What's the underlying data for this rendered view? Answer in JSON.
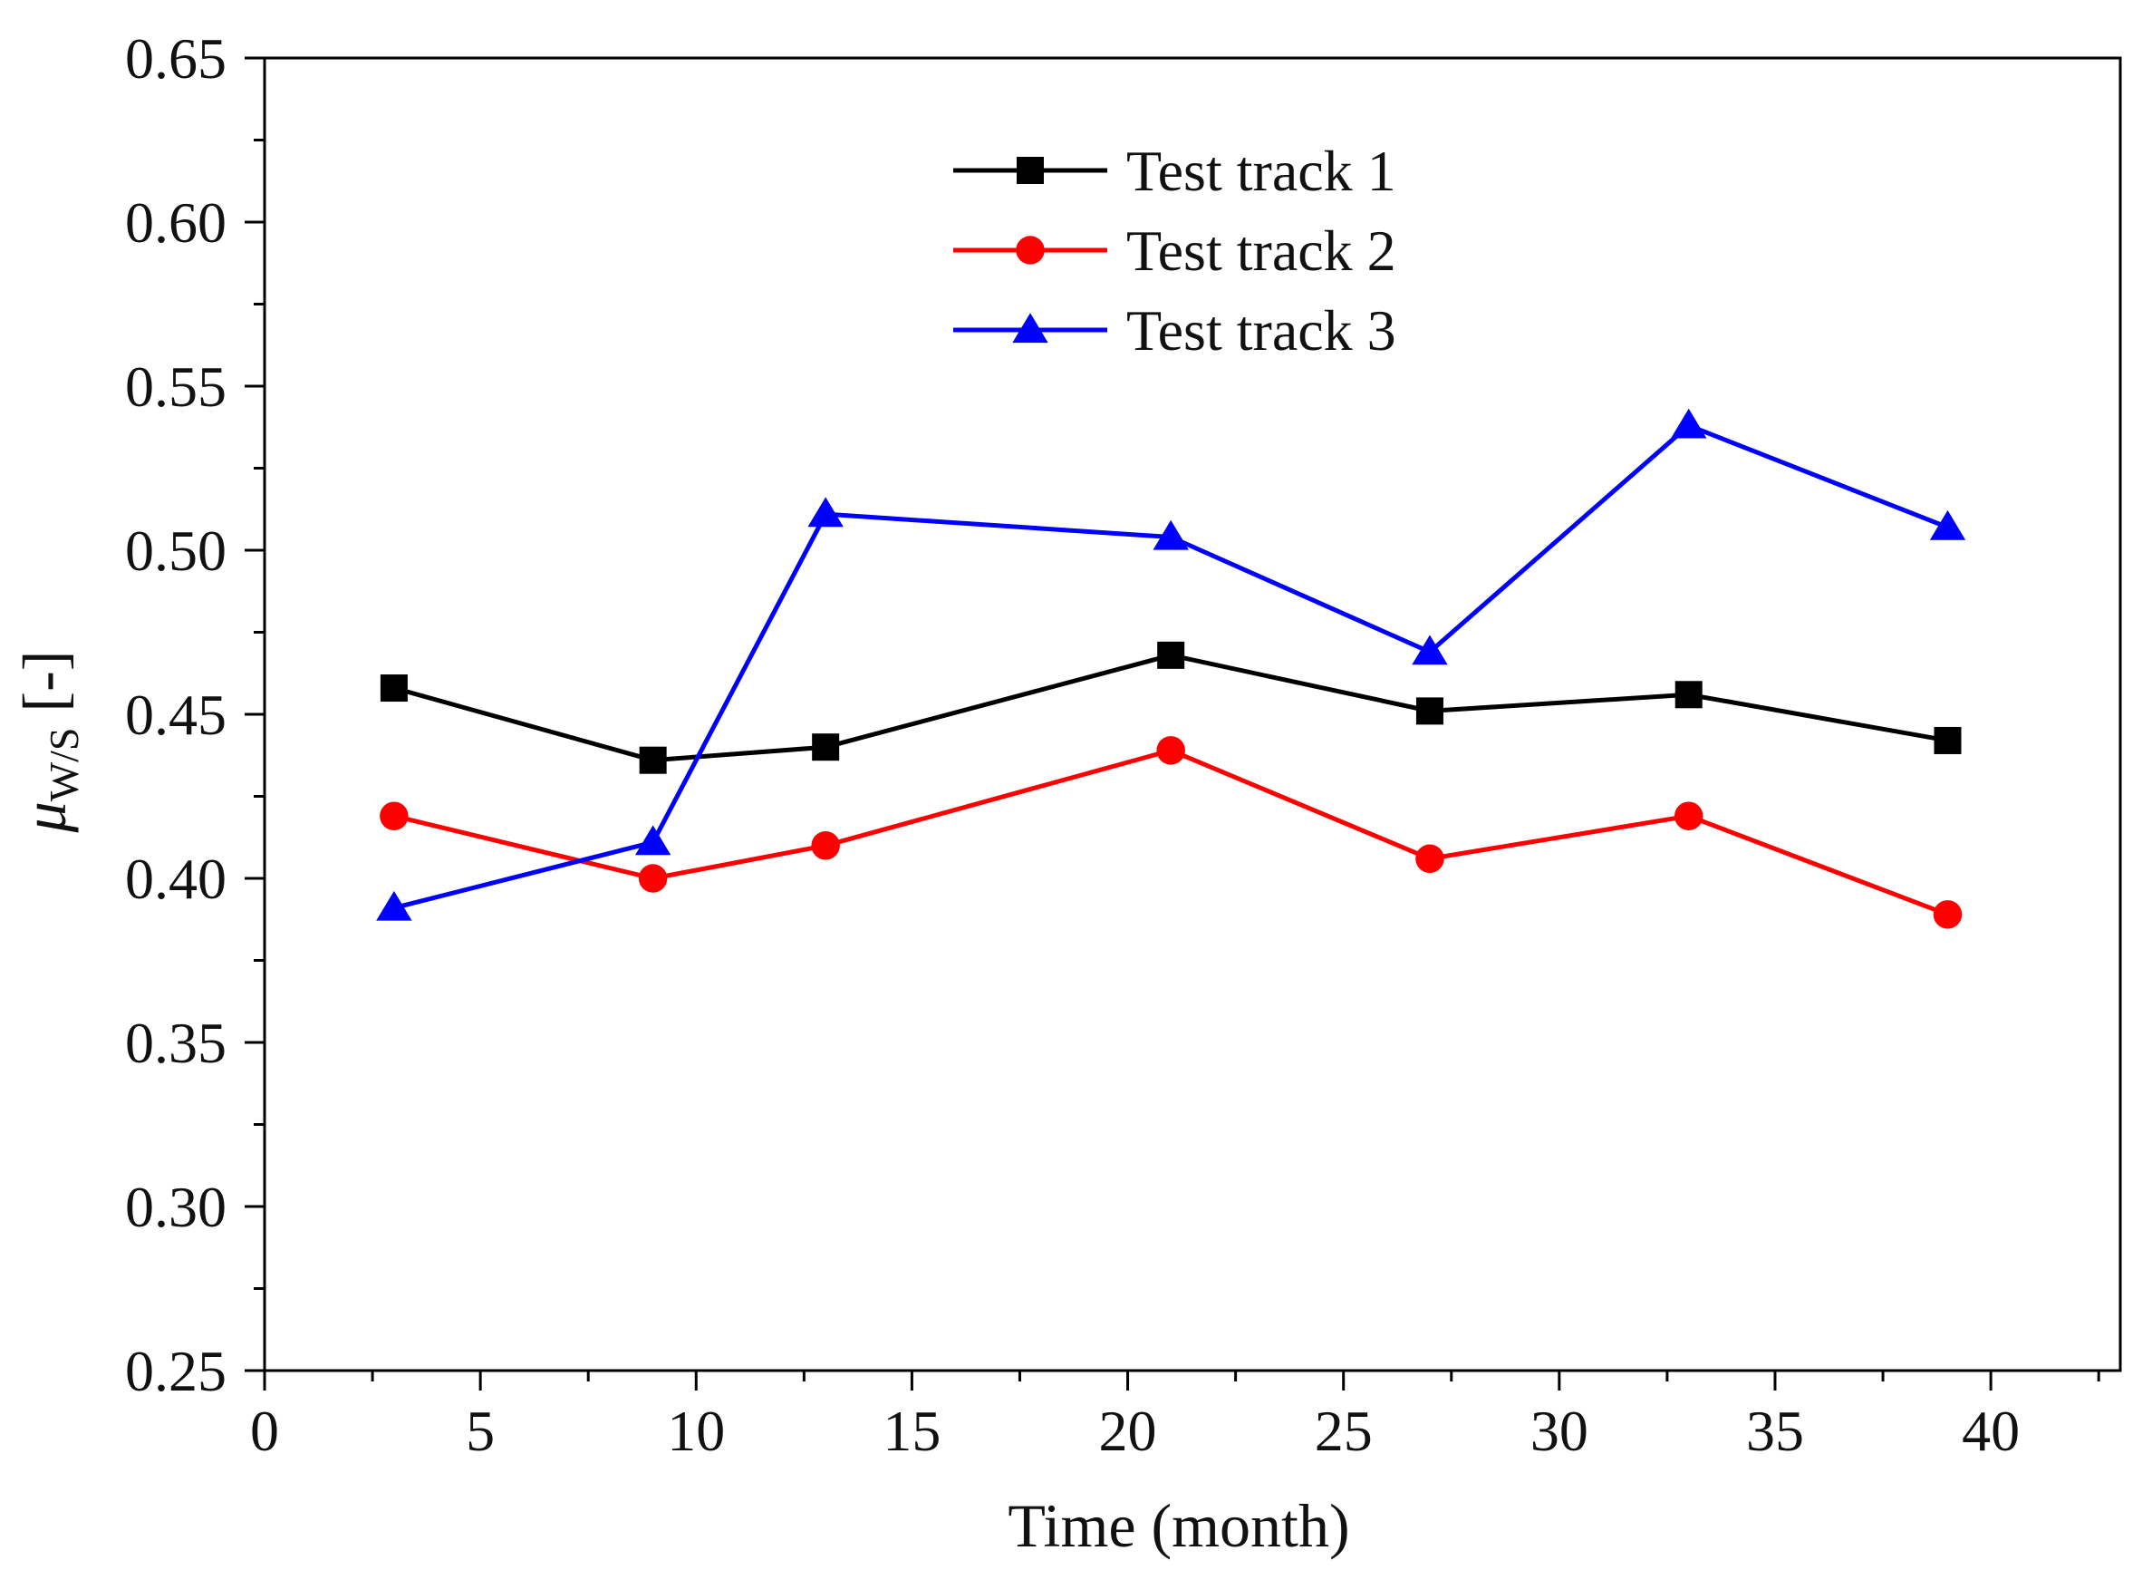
{
  "chart_data": {
    "type": "line",
    "title": "",
    "xlabel": "Time (month)",
    "ylabel_symbol": "μ",
    "ylabel_subscript": "W/S",
    "ylabel_unit": " [-]",
    "xlim": [
      0,
      43
    ],
    "ylim": [
      0.25,
      0.65
    ],
    "xticks": [
      0,
      5,
      10,
      15,
      20,
      25,
      30,
      35,
      40
    ],
    "xtick_labels": [
      "0",
      "5",
      "10",
      "15",
      "20",
      "25",
      "30",
      "35",
      "40"
    ],
    "yticks": [
      0.25,
      0.3,
      0.35,
      0.4,
      0.45,
      0.5,
      0.55,
      0.6,
      0.65
    ],
    "ytick_labels": [
      "0.25",
      "0.30",
      "0.35",
      "0.40",
      "0.45",
      "0.50",
      "0.55",
      "0.60",
      "0.65"
    ],
    "x": [
      3,
      9,
      13,
      21,
      27,
      33,
      39
    ],
    "grid": false,
    "legend_position": "top-center",
    "series": [
      {
        "name": "Test track 1",
        "color": "#000000",
        "marker": "square",
        "values": [
          0.458,
          0.436,
          0.44,
          0.468,
          0.451,
          0.456,
          0.442
        ]
      },
      {
        "name": "Test track 2",
        "color": "#ff0000",
        "marker": "circle",
        "values": [
          0.419,
          0.4,
          0.41,
          0.439,
          0.406,
          0.419,
          0.389
        ]
      },
      {
        "name": "Test track 3",
        "color": "#0000ff",
        "marker": "triangle",
        "values": [
          0.391,
          0.411,
          0.511,
          0.504,
          0.469,
          0.538,
          0.507
        ]
      }
    ]
  }
}
